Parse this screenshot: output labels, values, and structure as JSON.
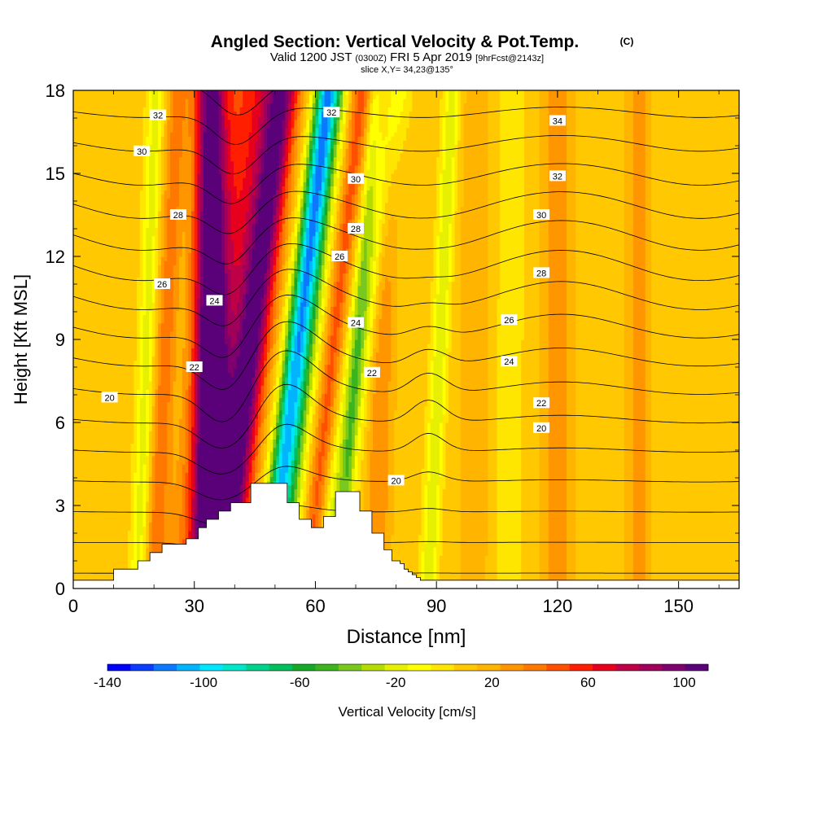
{
  "chart_data": {
    "type": "heatmap",
    "title": "Angled Section: Vertical Velocity & Pot.Temp.",
    "title_mark": "(C)",
    "subtitle": {
      "valid_prefix": "Valid 1200 JST",
      "utc": "(0300Z)",
      "date": "FRI 5 Apr 2019",
      "forecast": "[9hrFcst@2143z]"
    },
    "slice_label": "slice X,Y= 34,23@135°",
    "xlabel": "Distance [nm]",
    "ylabel": "Height [Kft MSL]",
    "xlim": [
      0,
      165
    ],
    "ylim": [
      0,
      18
    ],
    "xticks": [
      "0",
      "30",
      "60",
      "90",
      "120",
      "150"
    ],
    "yticks": [
      "0",
      "3",
      "6",
      "9",
      "12",
      "15",
      "18"
    ],
    "colorbar": {
      "label": "Vertical Velocity [cm/s]",
      "min": -140,
      "max": 110,
      "step": 10,
      "tick_labels": [
        "-140",
        "-100",
        "-60",
        "-20",
        "20",
        "60",
        "100"
      ],
      "colors": [
        "#0000ff",
        "#0a3cff",
        "#0a78ff",
        "#00b4ff",
        "#00e6ff",
        "#00e6c8",
        "#00d28c",
        "#00be5a",
        "#14aa28",
        "#3cb41e",
        "#78c81e",
        "#b4dc00",
        "#e6f000",
        "#ffff00",
        "#ffe600",
        "#ffc800",
        "#ffb400",
        "#ff9600",
        "#ff7800",
        "#ff5000",
        "#ff1e00",
        "#e6001e",
        "#be0046",
        "#a0005a",
        "#7d006e",
        "#5a0078"
      ]
    },
    "background_velocity": 15,
    "vertical_velocity_bands": [
      {
        "x_base": 34,
        "tilt": 0.0,
        "width": 4.0,
        "value": 100
      },
      {
        "x_base": 37,
        "tilt": 0.5,
        "width": 4.0,
        "value": 80
      },
      {
        "x_base": 32,
        "tilt": 0.45,
        "width": 8.0,
        "value": 50
      },
      {
        "x_base": 48,
        "tilt": 0.5,
        "width": 3.0,
        "value": -90
      },
      {
        "x_base": 51,
        "tilt": 0.45,
        "width": 3.5,
        "value": -50
      },
      {
        "x_base": 58,
        "tilt": 0.45,
        "width": 2.5,
        "value": 40
      },
      {
        "x_base": 63,
        "tilt": 0.55,
        "width": 3.5,
        "value": -40
      },
      {
        "x_base": 66,
        "tilt": 0.3,
        "width": 1.5,
        "value": -20
      },
      {
        "x_base": 88,
        "tilt": 0.2,
        "width": 2.0,
        "value": -35
      },
      {
        "x_base": 16,
        "tilt": 0.15,
        "width": 2.0,
        "value": -30
      },
      {
        "x_base": 20,
        "tilt": 0.2,
        "width": 2.5,
        "value": 30
      },
      {
        "x_base": 75,
        "tilt": 0.1,
        "width": 3.0,
        "value": 25
      },
      {
        "x_base": 120,
        "tilt": 0.0,
        "width": 4.0,
        "value": 22
      },
      {
        "x_base": 107,
        "tilt": 0.05,
        "width": 4.0,
        "value": -12
      },
      {
        "x_base": 140,
        "tilt": 0.0,
        "width": 3.0,
        "value": 20
      },
      {
        "x_base": 100,
        "tilt": 0.0,
        "width": 5.0,
        "value": 10
      }
    ],
    "potential_temperature": {
      "levels": [
        18,
        19,
        20,
        21,
        22,
        23,
        24,
        25,
        26,
        27,
        28,
        29,
        30,
        31,
        32,
        33,
        34,
        35
      ],
      "base_theta": 17.5,
      "lapse_per_kft": 0.9,
      "labels": [
        {
          "text": "32",
          "x": 21,
          "y": 17.1
        },
        {
          "text": "32",
          "x": 64,
          "y": 17.2
        },
        {
          "text": "34",
          "x": 120,
          "y": 16.9
        },
        {
          "text": "30",
          "x": 17,
          "y": 15.8
        },
        {
          "text": "30",
          "x": 70,
          "y": 14.8
        },
        {
          "text": "32",
          "x": 120,
          "y": 14.9
        },
        {
          "text": "28",
          "x": 26,
          "y": 13.5
        },
        {
          "text": "28",
          "x": 70,
          "y": 13.0
        },
        {
          "text": "30",
          "x": 116,
          "y": 13.5
        },
        {
          "text": "26",
          "x": 66,
          "y": 12.0
        },
        {
          "text": "28",
          "x": 116,
          "y": 11.4
        },
        {
          "text": "26",
          "x": 22,
          "y": 11.0
        },
        {
          "text": "24",
          "x": 35,
          "y": 10.4
        },
        {
          "text": "24",
          "x": 70,
          "y": 9.6
        },
        {
          "text": "26",
          "x": 108,
          "y": 9.7
        },
        {
          "text": "22",
          "x": 30,
          "y": 8.0
        },
        {
          "text": "24",
          "x": 108,
          "y": 8.2
        },
        {
          "text": "22",
          "x": 74,
          "y": 7.8
        },
        {
          "text": "20",
          "x": 9,
          "y": 6.9
        },
        {
          "text": "22",
          "x": 116,
          "y": 6.7
        },
        {
          "text": "20",
          "x": 116,
          "y": 5.8
        },
        {
          "text": "20",
          "x": 80,
          "y": 3.9
        }
      ]
    },
    "terrain_kft": [
      0.3,
      0.3,
      0.3,
      0.3,
      0.3,
      0.3,
      0.3,
      0.3,
      0.3,
      0.3,
      0.7,
      0.7,
      0.7,
      0.7,
      0.7,
      0.7,
      1.0,
      1.0,
      1.0,
      1.3,
      1.3,
      1.3,
      1.6,
      1.6,
      1.6,
      1.6,
      1.6,
      1.6,
      1.8,
      1.8,
      1.8,
      2.2,
      2.2,
      2.5,
      2.5,
      2.5,
      2.8,
      2.8,
      2.8,
      3.1,
      3.1,
      3.1,
      3.1,
      3.1,
      3.8,
      3.8,
      3.8,
      3.8,
      3.8,
      3.8,
      3.8,
      3.8,
      3.8,
      3.1,
      3.1,
      3.1,
      2.5,
      2.5,
      2.5,
      2.2,
      2.2,
      2.2,
      2.6,
      2.6,
      2.6,
      3.5,
      3.5,
      3.5,
      3.5,
      3.5,
      3.5,
      2.8,
      2.8,
      2.8,
      2.0,
      2.0,
      2.0,
      1.4,
      1.4,
      1.0,
      1.0,
      0.9,
      0.7,
      0.6,
      0.5,
      0.4,
      0.3,
      0.3,
      0.3,
      0.3,
      0.3,
      0.3,
      0.3,
      0.3,
      0.3,
      0.3,
      0.3,
      0.3,
      0.3,
      0.3,
      0.3,
      0.3,
      0.3,
      0.3,
      0.3,
      0.3,
      0.3,
      0.3,
      0.3,
      0.3,
      0.3,
      0.3,
      0.3,
      0.3,
      0.3,
      0.3,
      0.3,
      0.3,
      0.3,
      0.3,
      0.3,
      0.3,
      0.3,
      0.3,
      0.3,
      0.3,
      0.3,
      0.3,
      0.3,
      0.3,
      0.3,
      0.3,
      0.3,
      0.3,
      0.3,
      0.3,
      0.3,
      0.3,
      0.3,
      0.3,
      0.3,
      0.3,
      0.3,
      0.3,
      0.3,
      0.3,
      0.3,
      0.3,
      0.3,
      0.3,
      0.3,
      0.3,
      0.3,
      0.3,
      0.3,
      0.3,
      0.3,
      0.3,
      0.3,
      0.3,
      0.3,
      0.3,
      0.3,
      0.3,
      0.3,
      0.3
    ]
  }
}
